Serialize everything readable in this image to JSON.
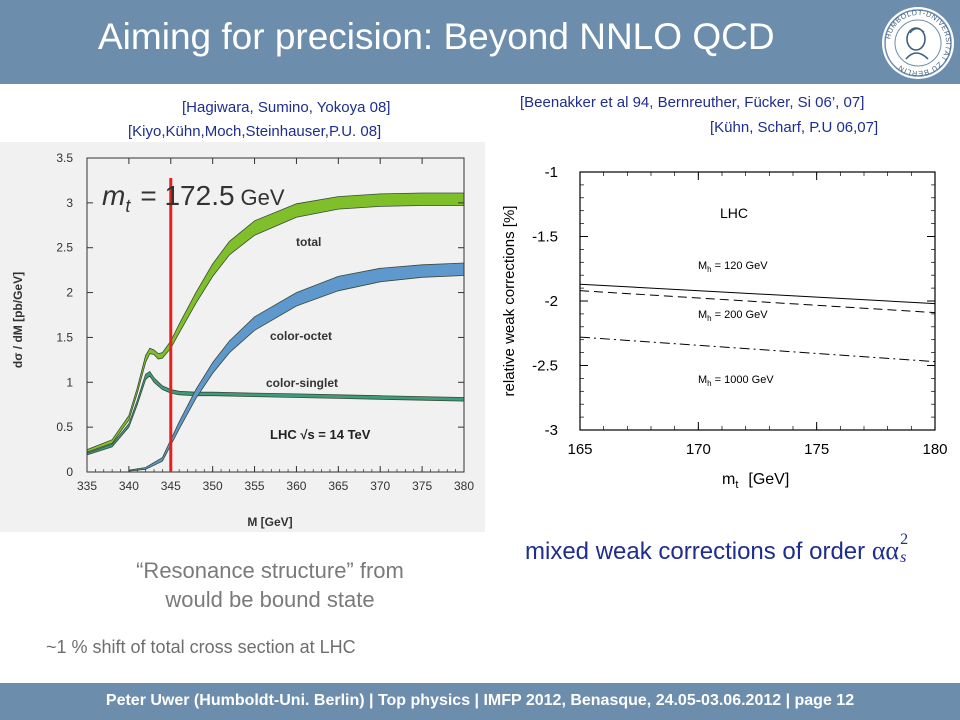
{
  "slide": {
    "title": "Aiming for precision: Beyond NNLO QCD",
    "footer": "Peter Uwer  (Humboldt-Uni. Berlin)  |  Top physics    |  IMFP 2012, Benasque, 24.05-03.06.2012  |  page 12",
    "seal_text": "HUMBOLDT-UNIVERSITÄT ZU BERLIN",
    "left_refs": [
      "[Hagiwara, Sumino, Yokoya 08]",
      "[Kiyo,Kühn,Moch,Steinhauser,P.U. 08]"
    ],
    "right_refs": [
      "[Beenakker et al 94, Bernreuther, Fücker, Si 06’, 07]",
      "[Kühn, Scharf, P.U 06,07]"
    ],
    "caption_lines": [
      "“Resonance structure” from",
      "would be bound state"
    ],
    "shift_text": "~1 % shift of total cross section at LHC",
    "mixed_text": "mixed weak corrections of order",
    "mixed_symbol": "αα",
    "mixed_sub": "s",
    "mixed_sup": "2"
  },
  "chart_data": [
    {
      "type": "area",
      "xlabel": "M [GeV]",
      "ylabel": "dσ / dM [pb/GeV]",
      "xlim": [
        335,
        380
      ],
      "ylim": [
        0,
        3.5
      ],
      "xticks": [
        "335",
        "340",
        "345",
        "350",
        "355",
        "360",
        "365",
        "370",
        "375",
        "380"
      ],
      "yticks": [
        "0",
        "0.5",
        "1",
        "1.5",
        "2",
        "2.5",
        "3",
        "3.5"
      ],
      "overlay_label": "m",
      "overlay_sub": "t",
      "overlay_eq": "= 172.5",
      "overlay_unit": "GeV",
      "vertical_line_x": 345,
      "annotation": "LHC √s = 14 TeV",
      "grid": false,
      "colors": {
        "total": "#7fbf2a",
        "color-octet": "#5e98cc",
        "color-singlet": "#3e9c7a",
        "marker_line": "#e8201c"
      },
      "series": [
        {
          "name": "total",
          "x": [
            335,
            338,
            340,
            341,
            342,
            342.5,
            343,
            343.5,
            344,
            345,
            346,
            348,
            350,
            352,
            355,
            360,
            365,
            370,
            375,
            380
          ],
          "lower": [
            0.22,
            0.32,
            0.58,
            0.88,
            1.22,
            1.32,
            1.31,
            1.26,
            1.27,
            1.38,
            1.55,
            1.88,
            2.18,
            2.42,
            2.64,
            2.84,
            2.93,
            2.96,
            2.97,
            2.97
          ],
          "upper": [
            0.25,
            0.36,
            0.63,
            0.94,
            1.3,
            1.38,
            1.36,
            1.32,
            1.33,
            1.46,
            1.65,
            2.0,
            2.32,
            2.57,
            2.8,
            2.99,
            3.07,
            3.1,
            3.11,
            3.11
          ]
        },
        {
          "name": "color-octet",
          "x": [
            340,
            342,
            344,
            345,
            346,
            348,
            350,
            352,
            355,
            360,
            365,
            370,
            375,
            380
          ],
          "lower": [
            0.01,
            0.03,
            0.12,
            0.3,
            0.48,
            0.82,
            1.1,
            1.33,
            1.58,
            1.85,
            2.02,
            2.12,
            2.17,
            2.19
          ],
          "upper": [
            0.02,
            0.05,
            0.16,
            0.36,
            0.56,
            0.92,
            1.22,
            1.46,
            1.73,
            2.0,
            2.18,
            2.27,
            2.31,
            2.33
          ]
        },
        {
          "name": "color-singlet",
          "x": [
            335,
            338,
            340,
            341,
            342,
            342.5,
            343,
            344,
            345,
            346,
            348,
            350,
            355,
            360,
            365,
            370,
            375,
            380
          ],
          "lower": [
            0.19,
            0.28,
            0.5,
            0.75,
            1.03,
            1.07,
            1.0,
            0.92,
            0.88,
            0.86,
            0.85,
            0.85,
            0.84,
            0.83,
            0.82,
            0.81,
            0.8,
            0.79
          ],
          "upper": [
            0.21,
            0.31,
            0.54,
            0.8,
            1.09,
            1.12,
            1.05,
            0.96,
            0.92,
            0.9,
            0.89,
            0.89,
            0.88,
            0.87,
            0.86,
            0.85,
            0.84,
            0.83
          ]
        }
      ]
    },
    {
      "type": "line",
      "xlabel": "m",
      "xlabel_sub": "t",
      "xlabel_unit": "[GeV]",
      "ylabel": "relative weak corrections [%]",
      "xlim": [
        165,
        180
      ],
      "ylim": [
        -3,
        -1
      ],
      "xticks": [
        "165",
        "170",
        "175",
        "180"
      ],
      "yticks": [
        "-1",
        "-1.5",
        "-2",
        "-2.5",
        "-3"
      ],
      "annotation": "LHC",
      "grid": false,
      "series": [
        {
          "name": "M",
          "sub": "h",
          "eq": "= 120 GeV",
          "style": "solid",
          "x": [
            165,
            180
          ],
          "y": [
            -1.87,
            -2.02
          ]
        },
        {
          "name": "M",
          "sub": "h",
          "eq": "= 200 GeV",
          "style": "dashed",
          "x": [
            165,
            180
          ],
          "y": [
            -1.92,
            -2.09
          ]
        },
        {
          "name": "M",
          "sub": "h",
          "eq": "= 1000 GeV",
          "style": "dashdot",
          "x": [
            165,
            180
          ],
          "y": [
            -2.28,
            -2.47
          ]
        }
      ]
    }
  ]
}
